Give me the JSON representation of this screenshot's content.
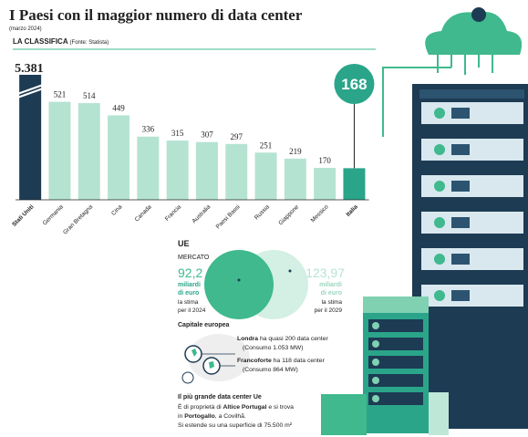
{
  "chart_data": {
    "type": "bar",
    "title": "I Paesi con il maggior numero di data center",
    "subtitle": "(marzo 2024)",
    "label": "LA CLASSIFICA",
    "source": "(Fonte: Statista)",
    "categories": [
      "Stati Uniti",
      "Germania",
      "Gran Bretagna",
      "Cina",
      "Canada",
      "Francia",
      "Australia",
      "Paesi Bassi",
      "Russia",
      "Giappone",
      "Messico",
      "Italia"
    ],
    "values": [
      5381,
      521,
      514,
      449,
      336,
      315,
      307,
      297,
      251,
      219,
      170,
      168
    ],
    "value_labels": [
      "5.381",
      "521",
      "514",
      "449",
      "336",
      "315",
      "307",
      "297",
      "251",
      "219",
      "170",
      "168"
    ],
    "color": "#b5e3d2",
    "colors": [
      "#1d3b53",
      "#b5e3d2",
      "#b5e3d2",
      "#b5e3d2",
      "#b5e3d2",
      "#b5e3d2",
      "#b5e3d2",
      "#b5e3d2",
      "#b5e3d2",
      "#b5e3d2",
      "#b5e3d2",
      "#2aa58a"
    ],
    "ylim": [
      0,
      650
    ],
    "axis_break": true
  },
  "market": {
    "region": "UE",
    "title": "MERCATO",
    "left": {
      "value": "92,2",
      "unit": "miliardi",
      "unit2": "di euro",
      "note": "la stima",
      "note2": "per il 2024"
    },
    "right": {
      "value": "123,97",
      "unit": "miliardi",
      "unit2": "di euro",
      "note": "la stima",
      "note2": "per il 2029"
    }
  },
  "capital": {
    "title": "Capitale europea",
    "items": [
      {
        "city": "Londra",
        "text": "ha quasi 200 data center",
        "note": "(Consumo 1.053 MW)"
      },
      {
        "city": "Francoforte",
        "text": "ha 118 data center",
        "note": "(Consumo 864 MW)"
      }
    ]
  },
  "largest": {
    "title": "Il più grande data center Ue",
    "lines": [
      [
        "È di proprietà di ",
        "Altice Portugal",
        " e si trova"
      ],
      [
        "in ",
        "Portogallo",
        ", a Covilhã."
      ],
      [
        "Si estende su una superficie di 75.500 m²"
      ]
    ]
  }
}
